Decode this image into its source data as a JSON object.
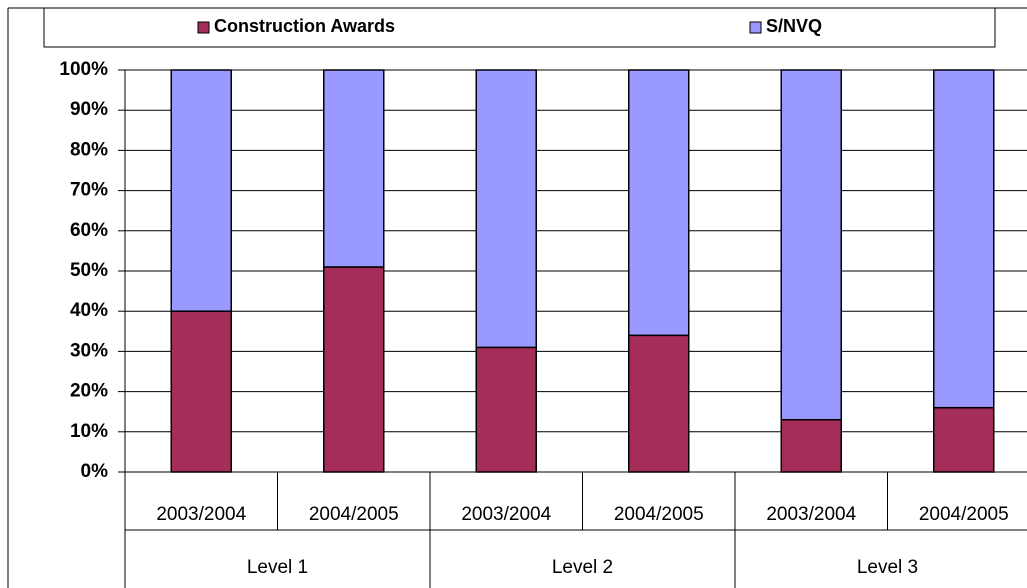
{
  "chart_data": {
    "type": "stacked-bar",
    "categories": [
      "2003/2004",
      "2004/2005",
      "2003/2004",
      "2004/2005",
      "2003/2004",
      "2004/2005"
    ],
    "groups": [
      "Level 1",
      "Level 2",
      "Level 3"
    ],
    "series": [
      {
        "name": "Construction Awards",
        "color": "#a52d5a",
        "values": [
          40,
          51,
          31,
          34,
          13,
          16
        ]
      },
      {
        "name": "S/NVQ",
        "color": "#9999ff",
        "values": [
          60,
          49,
          69,
          66,
          87,
          84
        ]
      }
    ],
    "ylim": [
      0,
      100
    ],
    "yticks": [
      {
        "value": 0,
        "label": "0%"
      },
      {
        "value": 10,
        "label": "10%"
      },
      {
        "value": 20,
        "label": "20%"
      },
      {
        "value": 30,
        "label": "30%"
      },
      {
        "value": 40,
        "label": "40%"
      },
      {
        "value": 50,
        "label": "50%"
      },
      {
        "value": 60,
        "label": "60%"
      },
      {
        "value": 70,
        "label": "70%"
      },
      {
        "value": 80,
        "label": "80%"
      },
      {
        "value": 90,
        "label": "90%"
      },
      {
        "value": 100,
        "label": "100%"
      }
    ],
    "grid": true
  }
}
